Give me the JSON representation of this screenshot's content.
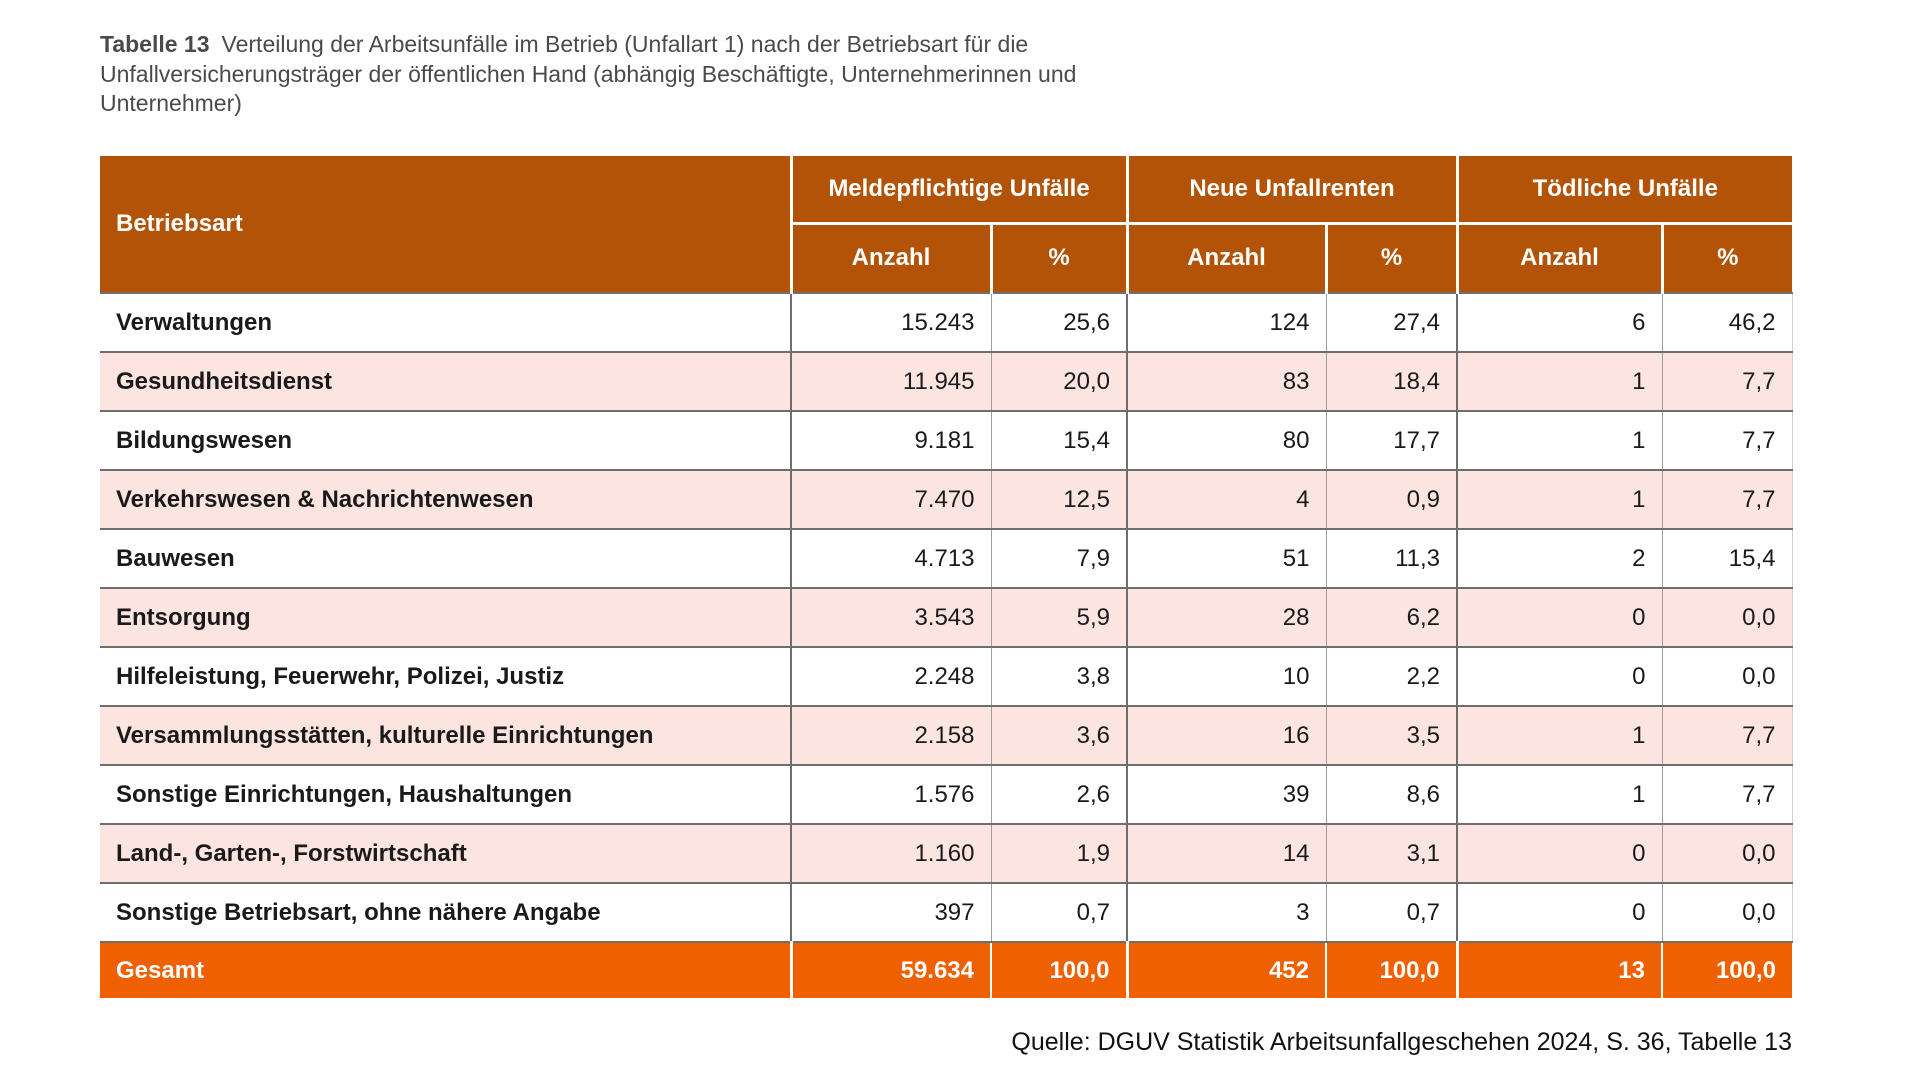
{
  "title": {
    "label": "Tabelle 13",
    "line1": "Verteilung der Arbeitsunfälle im Betrieb (Unfallart 1) nach der Betriebsart für die",
    "line2": "Unfallversicherungsträger der öffentlichen Hand (abhängig Beschäftigte, Unternehmerinnen und",
    "line3": "Unternehmer)"
  },
  "table": {
    "header": {
      "betriebsart": "Betriebsart",
      "groups": [
        "Meldepflichtige Unfälle",
        "Neue Unfallrenten",
        "Tödliche Unfälle"
      ],
      "subheaders": [
        "Anzahl",
        "%",
        "Anzahl",
        "%",
        "Anzahl",
        "%"
      ]
    },
    "rows": [
      {
        "label": "Verwaltungen",
        "values": [
          "15.243",
          "25,6",
          "124",
          "27,4",
          "6",
          "46,2"
        ]
      },
      {
        "label": "Gesundheitsdienst",
        "values": [
          "11.945",
          "20,0",
          "83",
          "18,4",
          "1",
          "7,7"
        ]
      },
      {
        "label": "Bildungswesen",
        "values": [
          "9.181",
          "15,4",
          "80",
          "17,7",
          "1",
          "7,7"
        ]
      },
      {
        "label": "Verkehrswesen & Nachrichtenwesen",
        "values": [
          "7.470",
          "12,5",
          "4",
          "0,9",
          "1",
          "7,7"
        ]
      },
      {
        "label": "Bauwesen",
        "values": [
          "4.713",
          "7,9",
          "51",
          "11,3",
          "2",
          "15,4"
        ]
      },
      {
        "label": "Entsorgung",
        "values": [
          "3.543",
          "5,9",
          "28",
          "6,2",
          "0",
          "0,0"
        ]
      },
      {
        "label": "Hilfeleistung, Feuerwehr, Polizei, Justiz",
        "values": [
          "2.248",
          "3,8",
          "10",
          "2,2",
          "0",
          "0,0"
        ]
      },
      {
        "label": "Versammlungsstätten, kulturelle Einrichtungen",
        "values": [
          "2.158",
          "3,6",
          "16",
          "3,5",
          "1",
          "7,7"
        ]
      },
      {
        "label": "Sonstige Einrichtungen, Haushaltungen",
        "values": [
          "1.576",
          "2,6",
          "39",
          "8,6",
          "1",
          "7,7"
        ]
      },
      {
        "label": "Land-, Garten-, Forstwirtschaft",
        "values": [
          "1.160",
          "1,9",
          "14",
          "3,1",
          "0",
          "0,0"
        ]
      },
      {
        "label": "Sonstige Betriebsart, ohne nähere Angabe",
        "values": [
          "397",
          "0,7",
          "3",
          "0,7",
          "0",
          "0,0"
        ]
      }
    ],
    "total": {
      "label": "Gesamt",
      "values": [
        "59.634",
        "100,0",
        "452",
        "100,0",
        "13",
        "100,0"
      ]
    }
  },
  "source": {
    "text": "Quelle: DGUV Statistik Arbeitsunfallgeschehen 2024, S. 36, Tabelle 13"
  },
  "colors": {
    "header_bg": "#b25307",
    "total_bg": "#ee6002",
    "alt_row_bg": "#fce5e1",
    "border_dark": "#6e6e6e",
    "border_thin": "#9e9e9e",
    "caption_color": "#4a4a4a",
    "data_color": "#1a1a1a"
  }
}
